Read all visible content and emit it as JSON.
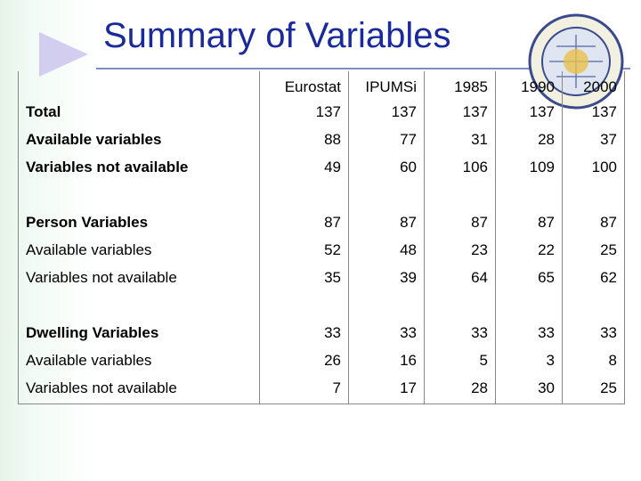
{
  "title": "Summary of Variables",
  "table": {
    "header": [
      "Eurostat",
      "IPUMSi",
      "1985",
      "1990",
      "2000"
    ],
    "groups": [
      {
        "rows": [
          [
            "Total",
            137,
            137,
            137,
            137,
            137
          ],
          [
            "Available variables",
            88,
            77,
            31,
            28,
            37
          ],
          [
            "Variables not available",
            49,
            60,
            106,
            109,
            100
          ]
        ]
      },
      {
        "rows": [
          [
            "Person Variables",
            87,
            87,
            87,
            87,
            87
          ],
          [
            "Available variables",
            52,
            48,
            23,
            22,
            25
          ],
          [
            "Variables not available",
            35,
            39,
            64,
            65,
            62
          ]
        ]
      },
      {
        "rows": [
          [
            "Dwelling Variables",
            33,
            33,
            33,
            33,
            33
          ],
          [
            "Available variables",
            26,
            16,
            5,
            3,
            8
          ],
          [
            "Variables not available",
            7,
            17,
            28,
            30,
            25
          ]
        ]
      }
    ]
  }
}
